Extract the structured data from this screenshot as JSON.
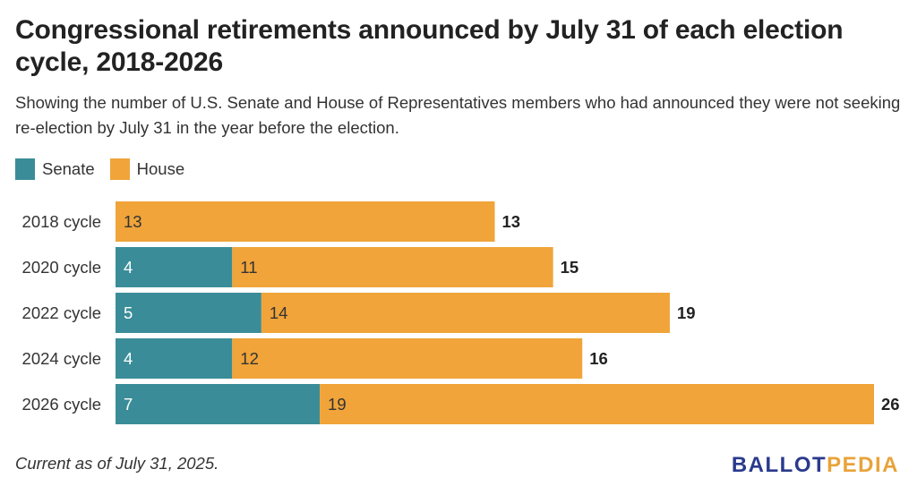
{
  "title": "Congressional retirements announced by July 31 of each election cycle, 2018-2026",
  "subtitle": "Showing the number of U.S. Senate and House of Representatives members who had announced they were not seeking re-election by July 31 in the year before the election.",
  "footer_note": "Current as of July 31, 2025.",
  "logo": {
    "part1": "BALLOT",
    "part2": "PEDIA"
  },
  "colors": {
    "senate": "#3a8d98",
    "house": "#f0a43a"
  },
  "chart_data": {
    "type": "bar",
    "orientation": "horizontal",
    "stacked": true,
    "categories": [
      "2018 cycle",
      "2020 cycle",
      "2022 cycle",
      "2024 cycle",
      "2026 cycle"
    ],
    "series": [
      {
        "name": "Senate",
        "values": [
          0,
          4,
          5,
          4,
          7
        ]
      },
      {
        "name": "House",
        "values": [
          13,
          11,
          14,
          12,
          19
        ]
      }
    ],
    "totals": [
      13,
      15,
      19,
      16,
      26
    ],
    "xlim": [
      0,
      26
    ],
    "legend_position": "top-left",
    "grid": false
  }
}
